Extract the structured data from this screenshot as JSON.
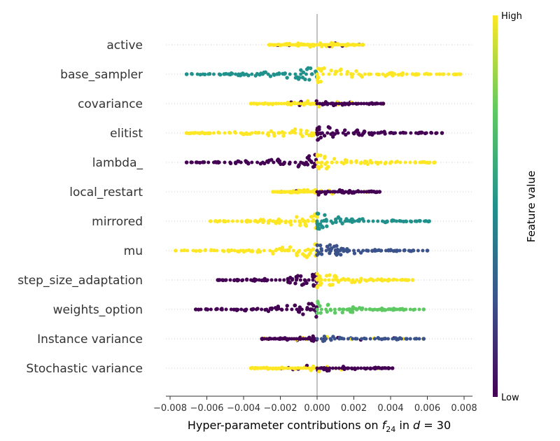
{
  "chart_data": {
    "type": "scatter",
    "subtype": "shap-beeswarm",
    "xlabel": "Hyper-parameter contributions on f₂₄ in d = 30",
    "xlabel_parts": {
      "prefix": "Hyper-parameter contributions on ",
      "var": "f",
      "sub": "24",
      "mid": " in ",
      "var2": "d",
      "suffix": " = 30"
    },
    "ylabel": "",
    "xlim": [
      -0.0088,
      0.0088
    ],
    "x_ticks": [
      -0.008,
      -0.006,
      -0.004,
      -0.002,
      0.0,
      0.002,
      0.004,
      0.006,
      0.008
    ],
    "x_tick_labels": [
      "−0.008",
      "−0.006",
      "−0.004",
      "−0.002",
      "0.000",
      "0.002",
      "0.004",
      "0.006",
      "0.008"
    ],
    "colorbar": {
      "label": "Feature value",
      "high_label": "High",
      "low_label": "Low",
      "colormap": "viridis",
      "colors": [
        "#440154",
        "#3b528b",
        "#21918c",
        "#5ec962",
        "#fde725"
      ]
    },
    "grid": "horizontal dotted per feature",
    "zero_line_color": "#999999",
    "features": [
      {
        "name": "active",
        "neg_extent": -0.0026,
        "pos_extent": 0.0025,
        "neg_color": "#fde725",
        "pos_color": "#fde725",
        "mixed": true
      },
      {
        "name": "base_sampler",
        "neg_extent": -0.0071,
        "pos_extent": 0.0078,
        "neg_color": "#21918c",
        "pos_color": "#fde725",
        "mixed": false
      },
      {
        "name": "covariance",
        "neg_extent": -0.0036,
        "pos_extent": 0.0036,
        "neg_color": "#fde725",
        "pos_color": "#440154",
        "mixed": true
      },
      {
        "name": "elitist",
        "neg_extent": -0.0071,
        "pos_extent": 0.0068,
        "neg_color": "#fde725",
        "pos_color": "#440154",
        "mixed": false
      },
      {
        "name": "lambda_",
        "neg_extent": -0.0071,
        "pos_extent": 0.0064,
        "neg_color": "#440154",
        "pos_color": "#fde725",
        "mixed": false
      },
      {
        "name": "local_restart",
        "neg_extent": -0.0024,
        "pos_extent": 0.0034,
        "neg_color": "#fde725",
        "pos_color": "#440154",
        "mixed": true
      },
      {
        "name": "mirrored",
        "neg_extent": -0.0058,
        "pos_extent": 0.0061,
        "neg_color": "#fde725",
        "pos_color": "#21918c",
        "mixed": false
      },
      {
        "name": "mu",
        "neg_extent": -0.0077,
        "pos_extent": 0.006,
        "neg_color": "#fde725",
        "pos_color": "#3b528b",
        "mixed": false
      },
      {
        "name": "step_size_adaptation",
        "neg_extent": -0.0054,
        "pos_extent": 0.0052,
        "neg_color": "#440154",
        "pos_color": "#fde725",
        "mixed": false
      },
      {
        "name": "weights_option",
        "neg_extent": -0.0066,
        "pos_extent": 0.0058,
        "neg_color": "#440154",
        "pos_color": "#5ec962",
        "mixed": false
      },
      {
        "name": "Instance variance",
        "neg_extent": -0.003,
        "pos_extent": 0.0058,
        "neg_color": "#440154",
        "pos_color": "#3b528b",
        "mixed": true
      },
      {
        "name": "Stochastic variance",
        "neg_extent": -0.0036,
        "pos_extent": 0.0041,
        "neg_color": "#fde725",
        "pos_color": "#440154",
        "mixed": true
      }
    ]
  }
}
